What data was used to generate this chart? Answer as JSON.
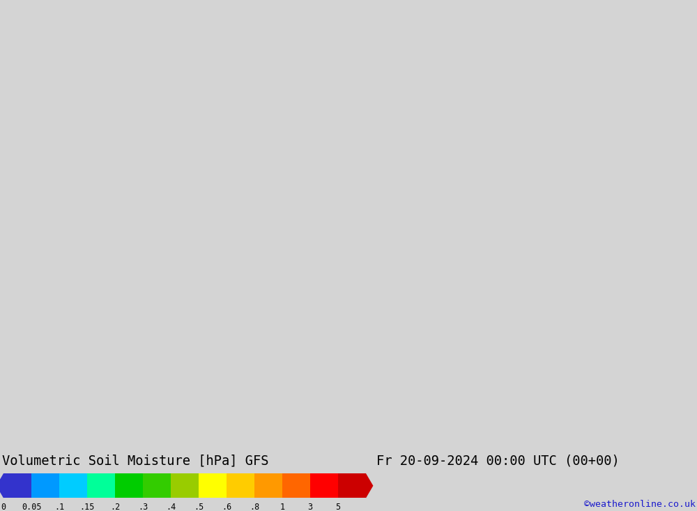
{
  "title_left": "Volumetric Soil Moisture [hPa] GFS",
  "title_right": "Fr 20-09-2024 00:00 UTC (00+00)",
  "credit": "©weatheronline.co.uk",
  "colorbar_levels": [
    0,
    0.05,
    0.1,
    0.15,
    0.2,
    0.3,
    0.4,
    0.5,
    0.6,
    0.8,
    1.0,
    3.0,
    5.0
  ],
  "colorbar_labels": [
    "0",
    "0.05",
    ".1",
    ".15",
    ".2",
    ".3",
    ".4",
    ".5",
    ".6",
    ".8",
    "1",
    "3",
    "5"
  ],
  "colorbar_colors": [
    "#3333cc",
    "#0099ff",
    "#00ccff",
    "#00ff99",
    "#00cc00",
    "#33cc00",
    "#99cc00",
    "#ffff00",
    "#ffcc00",
    "#ff9900",
    "#ff6600",
    "#ff0000",
    "#cc0000"
  ],
  "background_color": "#e0e0e0",
  "map_background": "#d8d8d8",
  "label_fontsize": 14,
  "credit_fontsize": 10,
  "title_fontsize": 15
}
